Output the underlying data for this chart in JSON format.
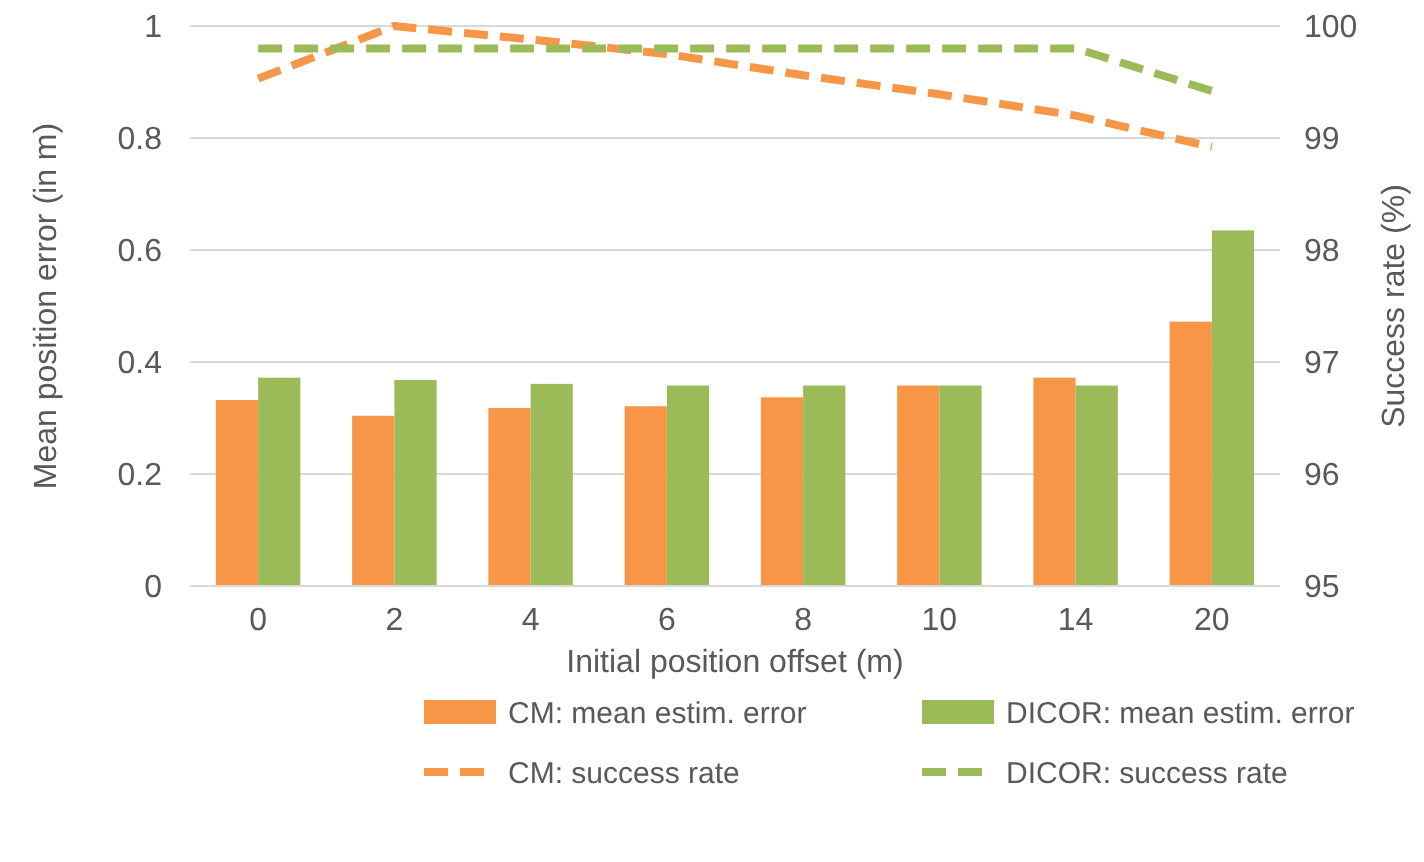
{
  "chart_data": {
    "type": "bar",
    "categories": [
      "0",
      "2",
      "4",
      "6",
      "8",
      "10",
      "14",
      "20"
    ],
    "xlabel": "Initial position offset (m)",
    "ylabel": "Mean position error (in m)",
    "y2label": "Success rate (%)",
    "ylim": [
      0,
      1
    ],
    "yticks": [
      0,
      0.2,
      0.4,
      0.6,
      0.8,
      1
    ],
    "y2lim": [
      95,
      100
    ],
    "y2ticks": [
      95,
      96,
      97,
      98,
      99,
      100
    ],
    "grid": "y",
    "legend": "bottom",
    "series": [
      {
        "name": "CM: mean estim. error",
        "color": "#f79646",
        "values": [
          0.332,
          0.304,
          0.318,
          0.321,
          0.337,
          0.358,
          0.372,
          0.472
        ]
      },
      {
        "name": "DICOR: mean estim. error",
        "color": "#9bbb59",
        "values": [
          0.372,
          0.368,
          0.361,
          0.358,
          0.358,
          0.358,
          0.358,
          0.635
        ]
      },
      {
        "name": "CM: success rate",
        "type": "line",
        "axis": "y2",
        "line_style": "dashed",
        "color": "#f79646",
        "values": [
          99.53,
          100,
          99.88,
          99.75,
          99.56,
          99.39,
          99.2,
          98.92
        ]
      },
      {
        "name": "DICOR: success rate",
        "type": "line",
        "axis": "y2",
        "line_style": "dashed",
        "color": "#9bbb59",
        "values": [
          99.8,
          99.8,
          99.8,
          99.8,
          99.8,
          99.8,
          99.8,
          99.42
        ]
      }
    ]
  }
}
